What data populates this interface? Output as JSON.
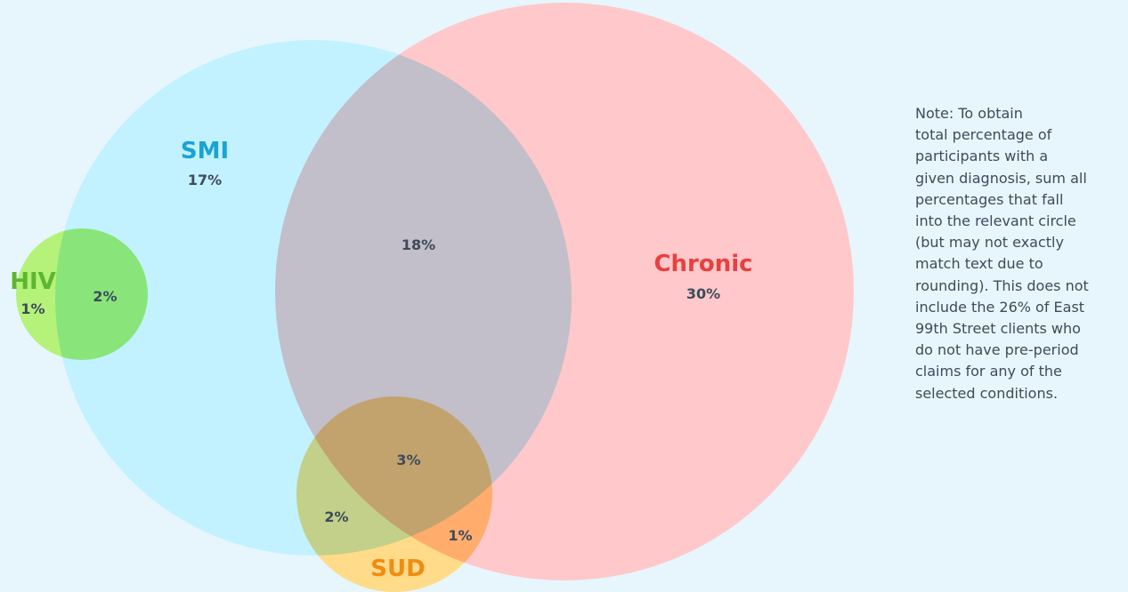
{
  "sets": [
    {
      "name": "SMI",
      "value": "17%"
    },
    {
      "name": "Chronic",
      "value": "30%"
    },
    {
      "name": "HIV",
      "value": "1%"
    },
    {
      "name": "SUD",
      "value": "2%"
    }
  ],
  "overlaps": [
    {
      "sets": "SMI+Chronic",
      "value": "18%"
    },
    {
      "sets": "HIV+SMI",
      "value": "2%"
    },
    {
      "sets": "SMI+Chronic+SUD",
      "value": "3%"
    },
    {
      "sets": "SMI+SUD",
      "value": "2%"
    },
    {
      "sets": "Chronic+SUD",
      "value": "1%"
    }
  ],
  "note": [
    "Note: To obtain",
    "total percentage of",
    "participants with a",
    "given diagnosis, sum all",
    "percentages that fall",
    "into the relevant circle",
    "(but may not exactly",
    "match text due to",
    "rounding). This does not",
    "include the 26% of East",
    "99th Street clients who",
    "do not have pre-period",
    "claims for any of the",
    "selected conditions."
  ]
}
